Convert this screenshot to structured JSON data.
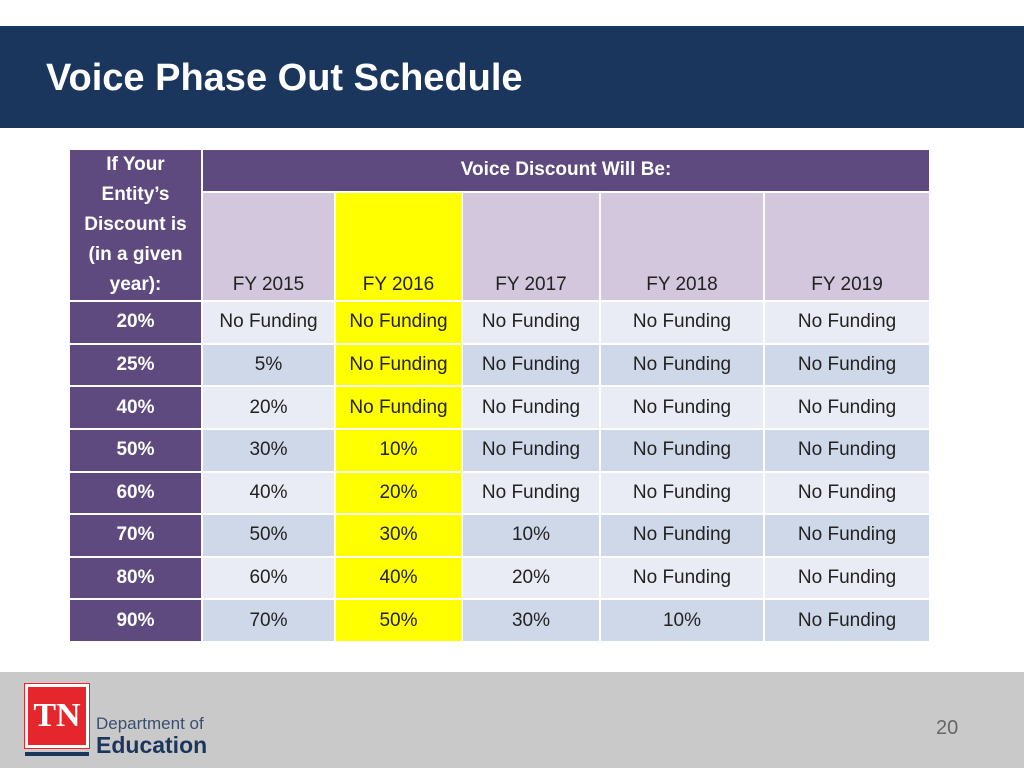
{
  "slide": {
    "title": "Voice Phase Out Schedule",
    "page_number": "20"
  },
  "table": {
    "corner_label": [
      "If Your",
      "Entity’s",
      "Discount is",
      "(in a given",
      "year):"
    ],
    "group_header": "Voice Discount Will Be:",
    "year_headers": [
      "FY 2015",
      "FY 2016",
      "FY 2017",
      "FY 2018",
      "FY 2019"
    ],
    "highlight_column": "FY 2016",
    "rows": [
      {
        "discount": "20%",
        "values": [
          "No Funding",
          "No Funding",
          "No Funding",
          "No Funding",
          "No Funding"
        ]
      },
      {
        "discount": "25%",
        "values": [
          "5%",
          "No Funding",
          "No Funding",
          "No Funding",
          "No Funding"
        ]
      },
      {
        "discount": "40%",
        "values": [
          "20%",
          "No Funding",
          "No Funding",
          "No Funding",
          "No Funding"
        ]
      },
      {
        "discount": "50%",
        "values": [
          "30%",
          "10%",
          "No Funding",
          "No Funding",
          "No Funding"
        ]
      },
      {
        "discount": "60%",
        "values": [
          "40%",
          "20%",
          "No Funding",
          "No Funding",
          "No Funding"
        ]
      },
      {
        "discount": "70%",
        "values": [
          "50%",
          "30%",
          "10%",
          "No Funding",
          "No Funding"
        ]
      },
      {
        "discount": "80%",
        "values": [
          "60%",
          "40%",
          "20%",
          "No Funding",
          "No Funding"
        ]
      },
      {
        "discount": "90%",
        "values": [
          "70%",
          "50%",
          "30%",
          "10%",
          "No Funding"
        ]
      }
    ]
  },
  "footer": {
    "logo_text": "TN",
    "department_line1": "Department of",
    "department_line2": "Education"
  },
  "colors": {
    "title_bar": "#1b365d",
    "header_purple": "#5e4a7e",
    "year_header_lavender": "#d2c7dd",
    "highlight_yellow": "#ffff00",
    "footer_gray": "#c9c9c9",
    "logo_red": "#e5262c"
  }
}
